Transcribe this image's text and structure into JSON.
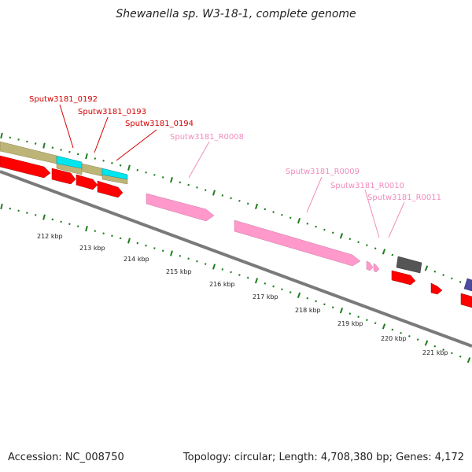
{
  "title": "Shewanella sp. W3-18-1, complete genome",
  "footer": {
    "accession": "Accession: NC_008750",
    "summary": "Topology: circular; Length: 4,708,380 bp; Genes: 4,172"
  },
  "colors": {
    "background": "#ffffff",
    "tick": "#1e7d1e",
    "cds": "#ff0000",
    "cds_label": "#d40000",
    "rrna": "#ff99cc",
    "rrna_label": "#f08cbe",
    "tan_feature": "#bdb477",
    "cyan_feature": "#00e5ee",
    "gray_feature": "#555555",
    "navy_feature": "#4b4ba0",
    "backbone": "#7a7a7a"
  },
  "feature_labels": [
    {
      "id": "lbl-0192",
      "text": "Sputw3181_0192",
      "kind": "cds"
    },
    {
      "id": "lbl-0193",
      "text": "Sputw3181_0193",
      "kind": "cds"
    },
    {
      "id": "lbl-0194",
      "text": "Sputw3181_0194",
      "kind": "cds"
    },
    {
      "id": "lbl-R0008",
      "text": "Sputw3181_R0008",
      "kind": "rrna"
    },
    {
      "id": "lbl-R0009",
      "text": "Sputw3181_R0009",
      "kind": "rrna"
    },
    {
      "id": "lbl-R0010",
      "text": "Sputw3181_R0010",
      "kind": "rrna"
    },
    {
      "id": "lbl-R0011",
      "text": "Sputw3181_R0011",
      "kind": "rrna"
    }
  ],
  "kbp_labels": [
    "212 kbp",
    "213 kbp",
    "214 kbp",
    "215 kbp",
    "216 kbp",
    "217 kbp",
    "218 kbp",
    "219 kbp",
    "220 kbp",
    "221 kbp"
  ]
}
